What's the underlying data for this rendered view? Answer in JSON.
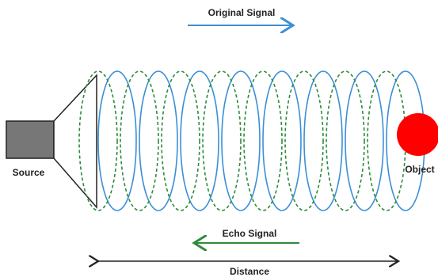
{
  "labels": {
    "original_signal": "Original Signal",
    "echo_signal": "Echo Signal",
    "source": "Source",
    "object": "Object",
    "distance": "Distance"
  }
}
